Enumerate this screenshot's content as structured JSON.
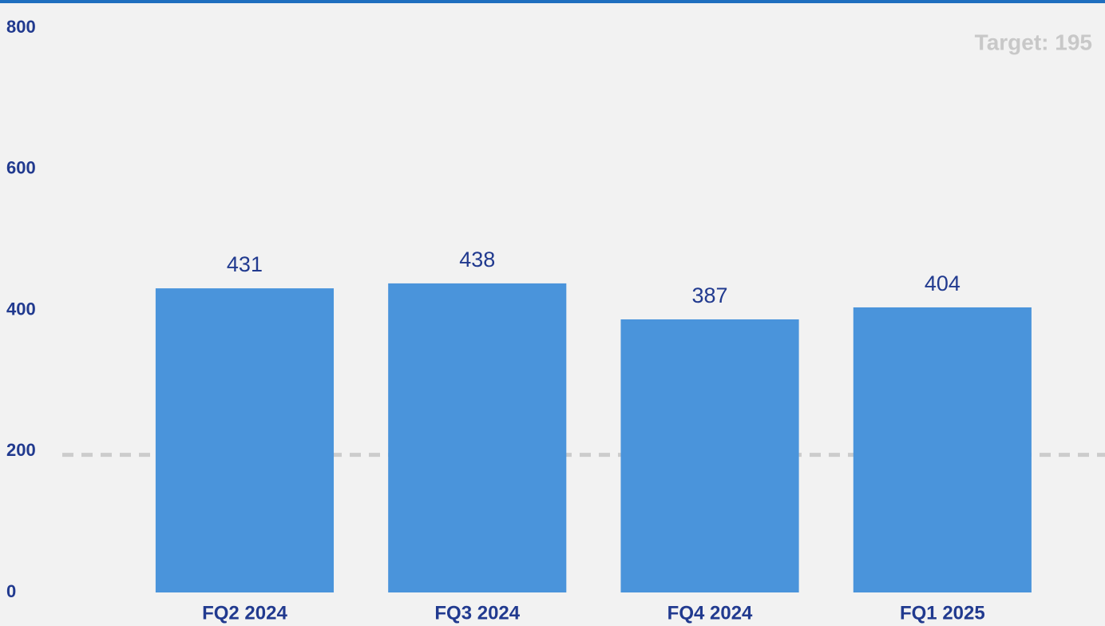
{
  "chart_data": {
    "type": "bar",
    "categories": [
      "FQ2 2024",
      "FQ3 2024",
      "FQ4 2024",
      "FQ1 2025"
    ],
    "values": [
      431,
      438,
      387,
      404
    ],
    "color": "#4a94db",
    "ylim": [
      0,
      800
    ],
    "yticks": [
      0,
      200,
      400,
      600,
      800
    ],
    "target": {
      "value": 195,
      "label": "Target: 195"
    }
  }
}
